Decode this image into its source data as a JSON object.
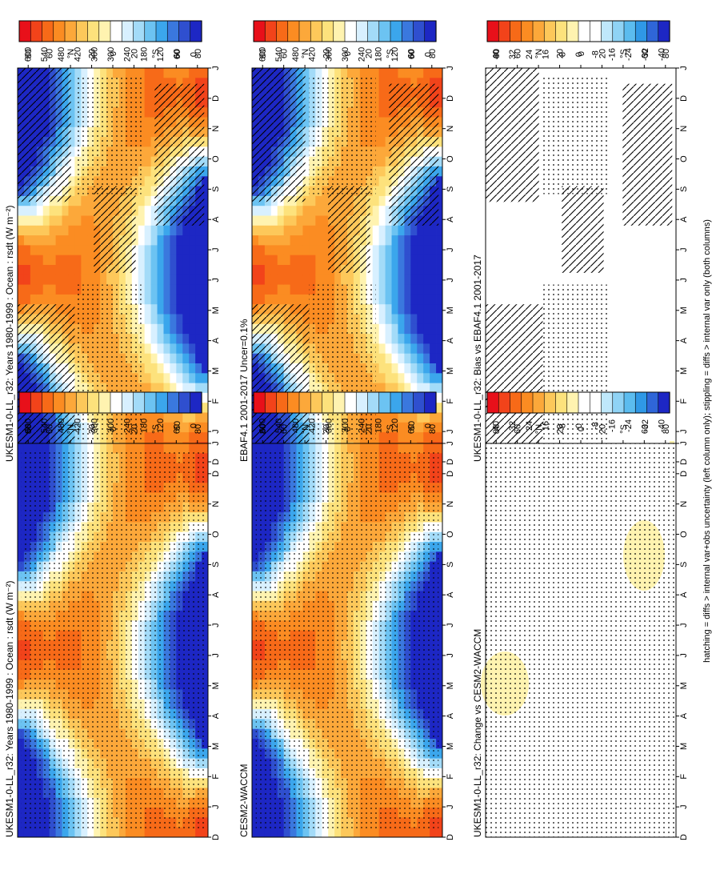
{
  "footer_note": "hatching = diffs > internal var+obs uncertainty (left column only); stippling = diffs > internal var only (both columns)",
  "palettes": {
    "absolute": [
      "#e8101a",
      "#f2431a",
      "#f76a18",
      "#fb8c22",
      "#fca83a",
      "#fdc85a",
      "#fde27c",
      "#fff3b0",
      "#ffffff",
      "#d8f0ff",
      "#a3dbf8",
      "#6cc3f2",
      "#3ba6ec",
      "#3a78de",
      "#2f4fcf",
      "#1d27c4"
    ],
    "difference": [
      "#e8101a",
      "#f2431a",
      "#f76a18",
      "#fb8c22",
      "#fca83a",
      "#fdc85a",
      "#fde27c",
      "#fff3b0",
      "#ffffff",
      "#ffffff",
      "#bfe8fb",
      "#8fd3f5",
      "#5bbcef",
      "#2f98e6",
      "#2f66d8",
      "#1d27c4"
    ]
  },
  "colorbars": {
    "absolute": {
      "labels": [
        "600",
        "540",
        "480",
        "420",
        "360",
        "300",
        "240",
        "180",
        "120",
        "60",
        "0"
      ]
    },
    "difference": {
      "labels": [
        "40",
        "32",
        "24",
        "16",
        "8",
        "0",
        "-8",
        "-16",
        "-24",
        "-32",
        "-40"
      ]
    }
  },
  "month_labels": [
    "D",
    "J",
    "F",
    "M",
    "A",
    "M",
    "J",
    "J",
    "A",
    "S",
    "O",
    "N",
    "D",
    "J"
  ],
  "lat_labels": [
    "80",
    "60",
    "°N",
    "20",
    "0",
    "20",
    "°S",
    "60",
    "80"
  ],
  "chart_data": [
    {
      "type": "heatmap",
      "title": "UKESM1-0-LL_r32: Years 1980-1999 : Ocean : rsdt (W m⁻²)",
      "colorbar": "absolute",
      "x": [
        "D",
        "J",
        "F",
        "M",
        "A",
        "M",
        "J",
        "J",
        "A",
        "S",
        "O",
        "N",
        "D",
        "J"
      ],
      "y": [
        "80",
        "60",
        "40°N",
        "20",
        "0",
        "20",
        "40°S",
        "60",
        "80"
      ],
      "ylim": [
        -90,
        90
      ],
      "zlim": [
        0,
        600
      ],
      "value_at_solstice_summer_pole": 560,
      "value_at_polar_night": 0,
      "value_equator": 430,
      "hatching": true,
      "stippling": true
    },
    {
      "type": "heatmap",
      "title": "UKESM1-0-LL_r32: Years 1980-1999 : Ocean : rsdt (W m⁻²)",
      "colorbar": "absolute",
      "x": [
        "D",
        "J",
        "F",
        "M",
        "A",
        "M",
        "J",
        "J",
        "A",
        "S",
        "O",
        "N",
        "D",
        "J"
      ],
      "y": [
        "80",
        "60",
        "40°N",
        "20",
        "0",
        "20",
        "40°S",
        "60",
        "80"
      ],
      "ylim": [
        -90,
        90
      ],
      "zlim": [
        0,
        600
      ],
      "stippling": true
    },
    {
      "type": "heatmap",
      "title": "EBAF4.1 2001-2017 Uncer=0.1%",
      "colorbar": "absolute",
      "x": [
        "D",
        "J",
        "F",
        "M",
        "A",
        "M",
        "J",
        "J",
        "A",
        "S",
        "O",
        "N",
        "D",
        "J"
      ],
      "y": [
        "80",
        "60",
        "40°N",
        "20",
        "0",
        "20",
        "40°S",
        "60",
        "80"
      ],
      "ylim": [
        -90,
        90
      ],
      "zlim": [
        0,
        600
      ],
      "hatching": true,
      "stippling": true
    },
    {
      "type": "heatmap",
      "title": "CESM2-WACCM",
      "colorbar": "absolute",
      "x": [
        "D",
        "J",
        "F",
        "M",
        "A",
        "M",
        "J",
        "J",
        "A",
        "S",
        "O",
        "N",
        "D",
        "J"
      ],
      "y": [
        "80",
        "60",
        "40°N",
        "20",
        "0",
        "20",
        "40°S",
        "60",
        "80"
      ],
      "ylim": [
        -90,
        90
      ],
      "zlim": [
        0,
        600
      ],
      "stippling": true
    },
    {
      "type": "heatmap",
      "title": "UKESM1-0-LL_r32: Bias vs EBAF4.1 2001-2017",
      "colorbar": "difference",
      "x": [
        "D",
        "J",
        "F",
        "M",
        "A",
        "M",
        "J",
        "J",
        "A",
        "S",
        "O",
        "N",
        "D",
        "J"
      ],
      "y": [
        "80",
        "60",
        "40°N",
        "20",
        "0",
        "20",
        "40°S",
        "60",
        "80"
      ],
      "ylim": [
        -90,
        90
      ],
      "zlim": [
        -40,
        40
      ],
      "field": "near zero everywhere",
      "hatching": true,
      "stippling": true
    },
    {
      "type": "heatmap",
      "title": "UKESM1-0-LL_r32: Change vs CESM2-WACCM",
      "colorbar": "difference",
      "x": [
        "D",
        "J",
        "F",
        "M",
        "A",
        "M",
        "J",
        "J",
        "A",
        "S",
        "O",
        "N",
        "D",
        "J"
      ],
      "y": [
        "80",
        "60",
        "40°N",
        "20",
        "0",
        "20",
        "40°S",
        "60",
        "80"
      ],
      "ylim": [
        -90,
        90
      ],
      "zlim": [
        -40,
        40
      ],
      "field": "near zero except two small positive (8) blobs",
      "stippling": true
    }
  ]
}
